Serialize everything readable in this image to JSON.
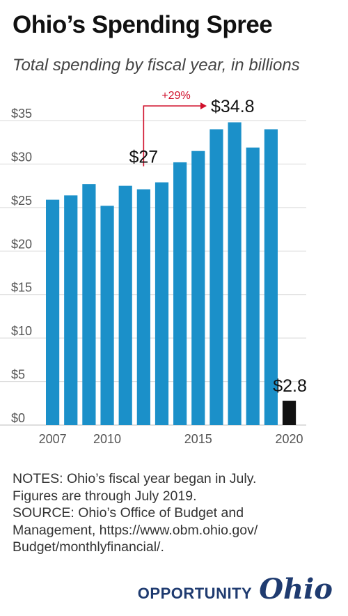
{
  "header": {
    "title": "Ohio’s Spending Spree",
    "subtitle": "Total spending by fiscal year, in billions"
  },
  "chart_data": {
    "type": "bar",
    "x": [
      2007,
      2008,
      2009,
      2010,
      2011,
      2012,
      2013,
      2014,
      2015,
      2016,
      2017,
      2018,
      2019,
      2020
    ],
    "values": [
      25.9,
      26.4,
      27.7,
      25.2,
      27.5,
      27.1,
      27.9,
      30.2,
      31.5,
      34.0,
      34.8,
      31.9,
      34.0,
      2.8
    ],
    "bar_colors": [
      "#1b90c9",
      "#1b90c9",
      "#1b90c9",
      "#1b90c9",
      "#1b90c9",
      "#1b90c9",
      "#1b90c9",
      "#1b90c9",
      "#1b90c9",
      "#1b90c9",
      "#1b90c9",
      "#1b90c9",
      "#1b90c9",
      "#111111"
    ],
    "ylim": [
      0,
      35
    ],
    "yticks": [
      0,
      5,
      10,
      15,
      20,
      25,
      30,
      35
    ],
    "ytick_labels": [
      "$0",
      "$5",
      "$10",
      "$15",
      "$20",
      "$25",
      "$30",
      "$35"
    ],
    "xtick_values": [
      2007,
      2010,
      2015,
      2020
    ],
    "xtick_labels": [
      "2007",
      "2010",
      "2015",
      "2020"
    ],
    "grid": true,
    "annotations": [
      {
        "label": "$27",
        "year": 2012
      },
      {
        "label": "$34.8",
        "year": 2017
      },
      {
        "label": "$2.8",
        "year": 2020
      }
    ],
    "change": {
      "label": "+29%",
      "from_year": 2012,
      "to_year": 2017,
      "color": "#d0102b"
    }
  },
  "notes": {
    "line1": "NOTES: Ohio’s fiscal year began in July.",
    "line2": "Figures are through July 2019.",
    "line3": "SOURCE: Ohio’s Office of Budget and",
    "line4": "Management, https://www.obm.ohio.gov/",
    "line5": "Budget/monthlyfinancial/."
  },
  "brand": {
    "word": "OPPORTUNITY",
    "script": "Ohio"
  }
}
